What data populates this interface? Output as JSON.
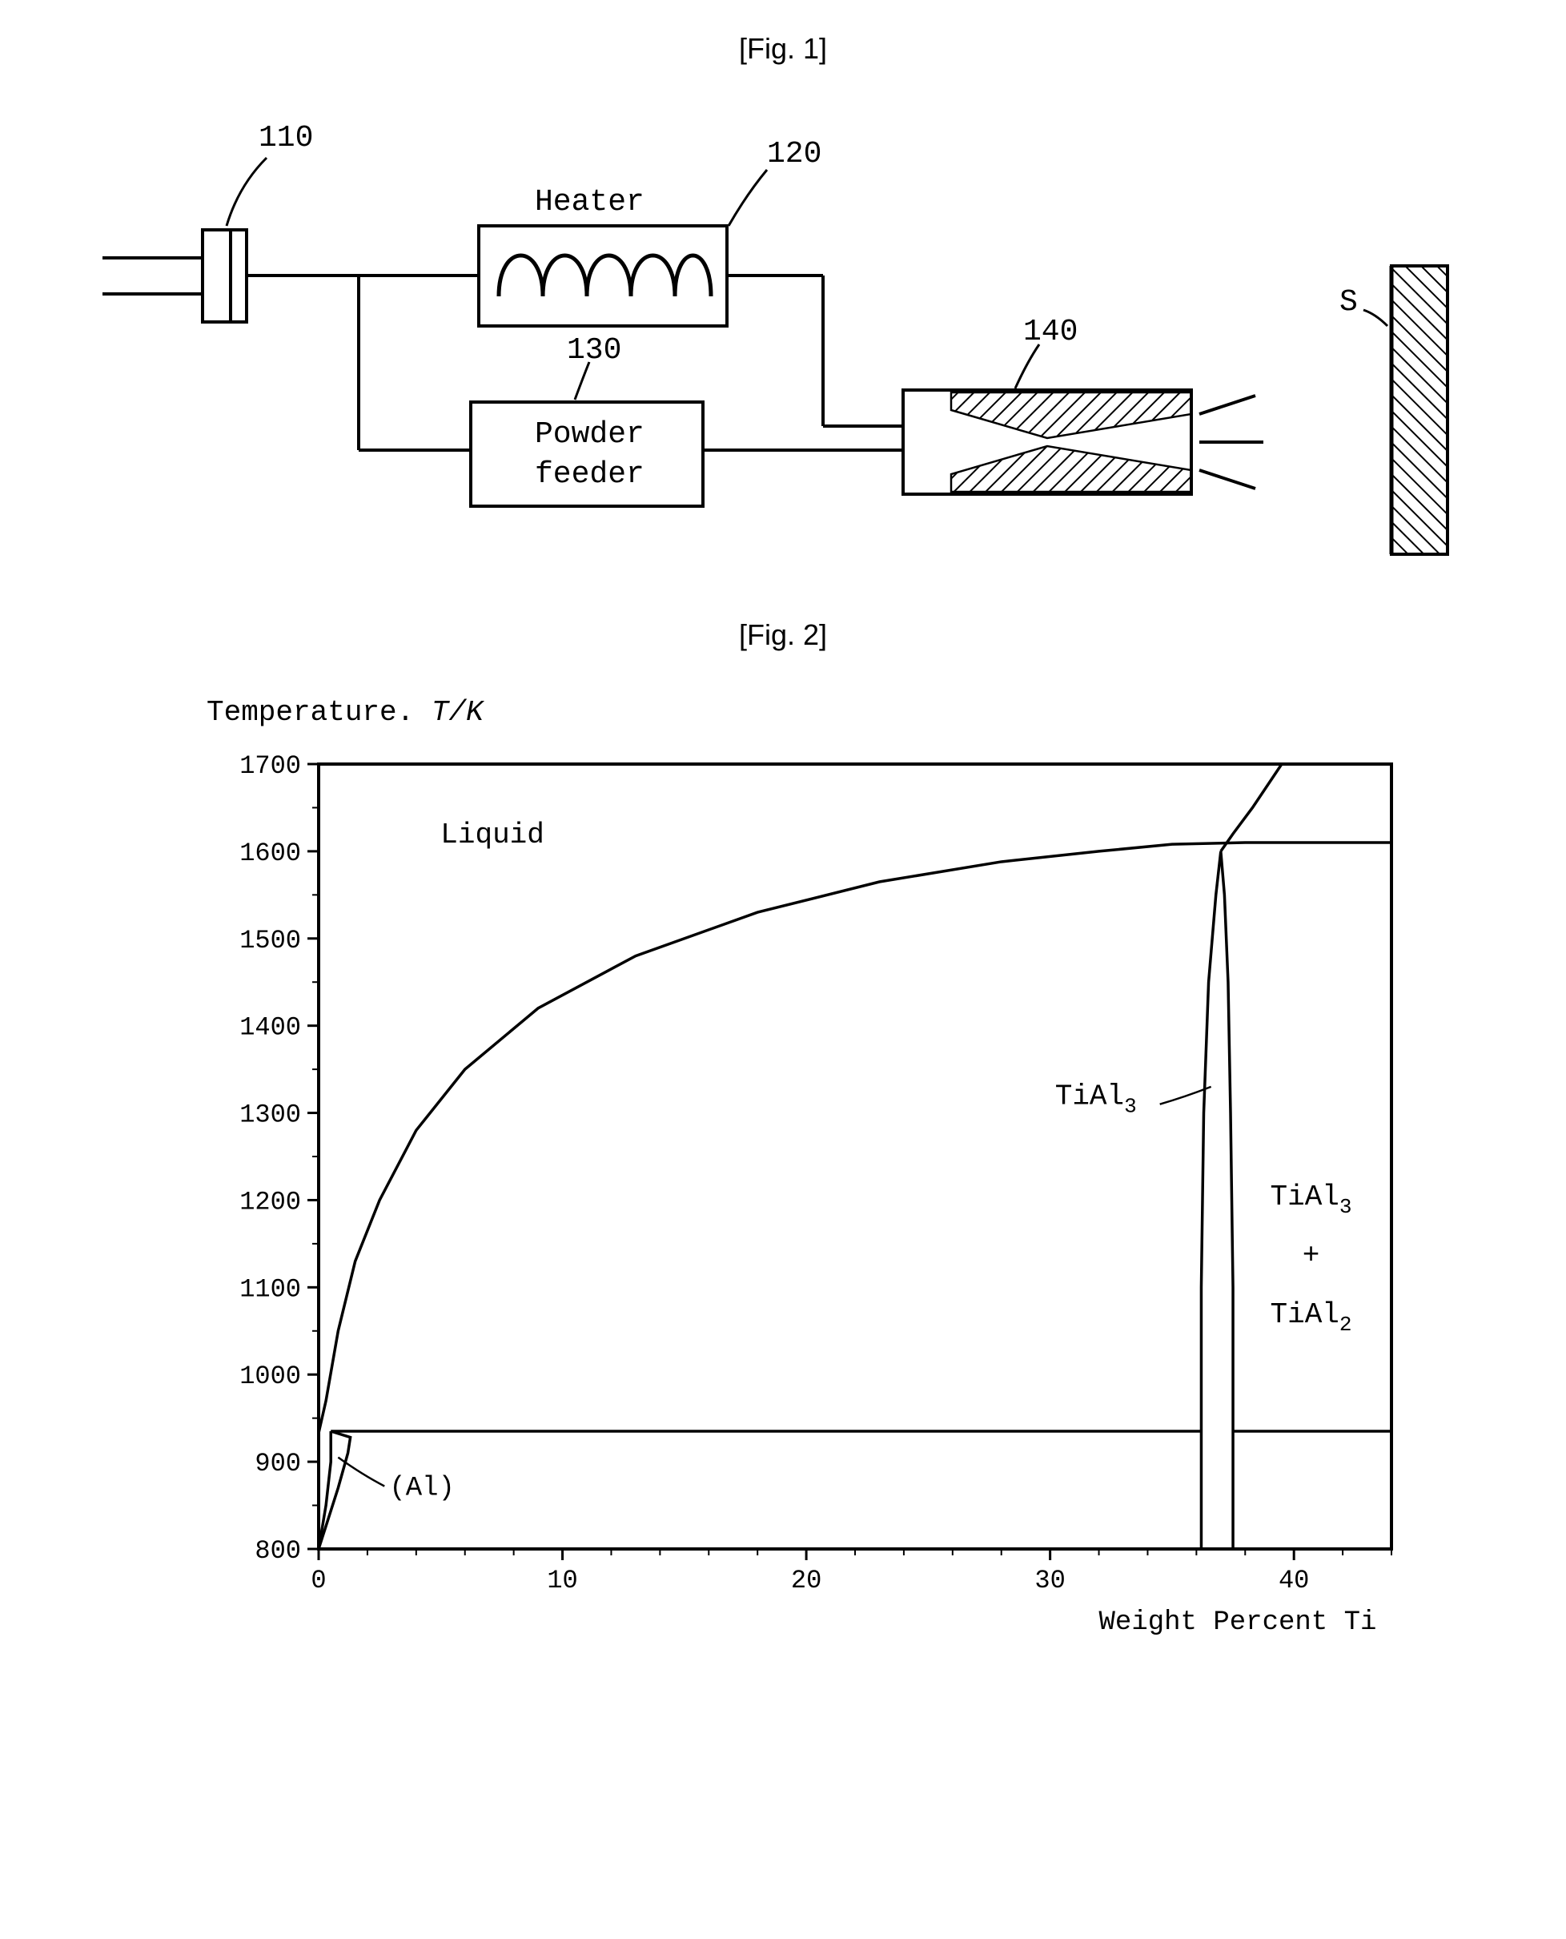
{
  "fig1": {
    "caption": "[Fig. 1]",
    "labels": {
      "ref110": "110",
      "ref120": "120",
      "ref130": "130",
      "ref140": "140",
      "refS": "S",
      "heater": "Heater",
      "powder": "Powder",
      "feeder": "feeder"
    },
    "style": {
      "stroke": "#000000",
      "stroke_width": 4,
      "hatch_spacing": 12,
      "box_fill": "#ffffff"
    }
  },
  "fig2": {
    "caption": "[Fig. 2]",
    "title": "Temperature.",
    "title_unit": "T/K",
    "xlabel": "Weight Percent Ti",
    "regions": {
      "liquid": "Liquid",
      "al": "(Al)",
      "tial3": "TiAl",
      "tial3_sub": "3",
      "tial2_plus": "+",
      "tial2": "TiAl",
      "tial2_sub": "2"
    },
    "y_ticks": [
      800,
      900,
      1000,
      1100,
      1200,
      1300,
      1400,
      1500,
      1600,
      1700
    ],
    "x_ticks": [
      0,
      10,
      20,
      30,
      40
    ],
    "ylim": [
      800,
      1700
    ],
    "xlim": [
      0,
      44
    ],
    "liquidus_curve": [
      [
        0,
        933
      ],
      [
        0.3,
        970
      ],
      [
        0.8,
        1050
      ],
      [
        1.5,
        1130
      ],
      [
        2.5,
        1200
      ],
      [
        4,
        1280
      ],
      [
        6,
        1350
      ],
      [
        9,
        1420
      ],
      [
        13,
        1480
      ],
      [
        18,
        1530
      ],
      [
        23,
        1565
      ],
      [
        28,
        1588
      ],
      [
        32,
        1600
      ],
      [
        35,
        1608
      ],
      [
        38,
        1610
      ],
      [
        44,
        1610
      ]
    ],
    "tial3_left": [
      [
        36.2,
        935
      ],
      [
        36.2,
        1100
      ],
      [
        36.3,
        1300
      ],
      [
        36.5,
        1450
      ],
      [
        36.8,
        1550
      ],
      [
        37.0,
        1600
      ]
    ],
    "tial3_right": [
      [
        37.5,
        935
      ],
      [
        37.5,
        1100
      ],
      [
        37.4,
        1300
      ],
      [
        37.3,
        1450
      ],
      [
        37.15,
        1550
      ],
      [
        37.0,
        1600
      ]
    ],
    "tial3_to_liquid": [
      [
        37.0,
        1600
      ],
      [
        37.5,
        1620
      ],
      [
        38.3,
        1650
      ],
      [
        39.5,
        1700
      ]
    ],
    "eutectic_line": {
      "y": 935,
      "x1": 0.5,
      "x2": 36.2
    },
    "al_solvus": [
      [
        0,
        800
      ],
      [
        0.8,
        870
      ],
      [
        1.2,
        910
      ],
      [
        1.3,
        928
      ],
      [
        0.5,
        935
      ]
    ],
    "al_branch2": [
      [
        0,
        800
      ],
      [
        0.3,
        850
      ],
      [
        0.5,
        900
      ],
      [
        0.5,
        935
      ]
    ],
    "style": {
      "stroke": "#000000",
      "stroke_width": 3.5,
      "axis_width": 4,
      "tick_len": 14,
      "minor_tick_len": 8,
      "plot_bg": "#ffffff",
      "font_color": "#000000"
    }
  }
}
